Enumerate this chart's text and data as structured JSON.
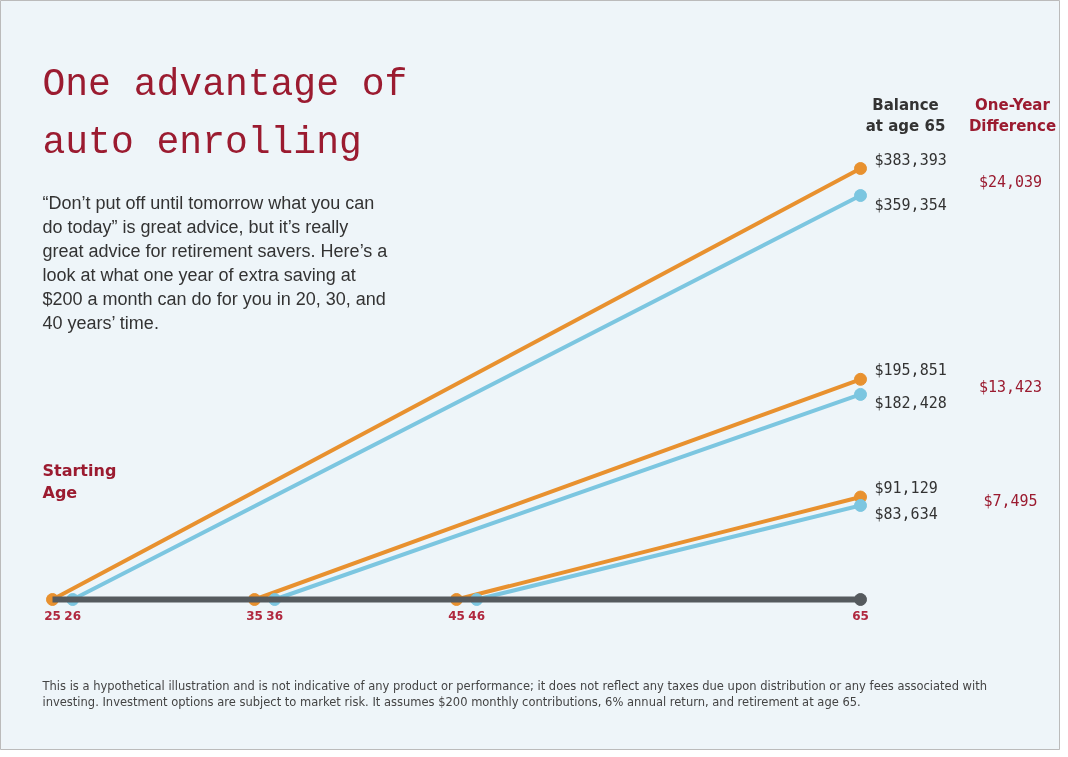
{
  "chart_data": {
    "type": "line",
    "title": "One advantage of auto enrolling",
    "subtitle": "“Don’t put off until tomorrow what you can do today” is great advice, but it’s really great advice for retirement savers. Here’s a look at what one year of extra saving at $200 a month can do for you in 20, 30, and 40 years’ time.",
    "xlim": [
      25,
      65
    ],
    "xticks": [
      25,
      26,
      35,
      36,
      45,
      46,
      65
    ],
    "marker": "circle",
    "grid": false,
    "series": [
      {
        "color": "#e8912f",
        "x": [
          25,
          65
        ],
        "values": [
          0,
          383393
        ],
        "value_labels": [
          null,
          "$383,393"
        ]
      },
      {
        "color": "#7cc6e0",
        "x": [
          26,
          65
        ],
        "values": [
          0,
          359354
        ],
        "value_labels": [
          null,
          "$359,354"
        ]
      },
      {
        "color": "#e8912f",
        "x": [
          35,
          65
        ],
        "values": [
          0,
          195851
        ],
        "value_labels": [
          null,
          "$195,851"
        ]
      },
      {
        "color": "#7cc6e0",
        "x": [
          36,
          65
        ],
        "values": [
          0,
          182428
        ],
        "value_labels": [
          null,
          "$182,428"
        ]
      },
      {
        "color": "#e8912f",
        "x": [
          45,
          65
        ],
        "values": [
          0,
          91129
        ],
        "value_labels": [
          null,
          "$91,129"
        ]
      },
      {
        "color": "#7cc6e0",
        "x": [
          46,
          65
        ],
        "values": [
          0,
          83634
        ],
        "value_labels": [
          null,
          "$83,634"
        ]
      }
    ],
    "annotations": [
      "Balance at age 65",
      "One-Year Difference",
      "Starting Age",
      "$24,039",
      "$13,423",
      "$7,495",
      "This is a hypothetical illustration and is not indicative of any product or performance; it does not reflect any taxes due upon distribution or any fees associated with investing. Investment options are subject to market risk. It assumes $200 monthly contributions, 6% annual return, and retirement at age 65."
    ]
  }
}
